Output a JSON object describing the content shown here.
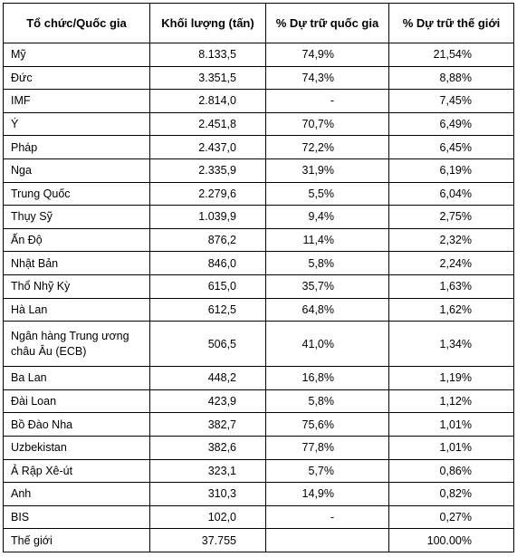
{
  "headers": [
    "Tổ chức/Quốc gia",
    "Khối lượng (tấn)",
    "% Dự trữ quốc gia",
    "% Dự trữ thế giới"
  ],
  "rows": [
    {
      "name": "Mỹ",
      "volume": "8.133,5",
      "pct_country": "74,9%",
      "pct_world": "21,54%"
    },
    {
      "name": "Đức",
      "volume": "3.351,5",
      "pct_country": "74,3%",
      "pct_world": "8,88%"
    },
    {
      "name": "IMF",
      "volume": "2.814,0",
      "pct_country": "-",
      "pct_world": "7,45%"
    },
    {
      "name": "Ý",
      "volume": "2.451,8",
      "pct_country": "70,7%",
      "pct_world": "6,49%"
    },
    {
      "name": "Pháp",
      "volume": "2.437,0",
      "pct_country": "72,2%",
      "pct_world": "6,45%"
    },
    {
      "name": "Nga",
      "volume": "2.335,9",
      "pct_country": "31,9%",
      "pct_world": "6,19%"
    },
    {
      "name": "Trung Quốc",
      "volume": "2.279,6",
      "pct_country": "5,5%",
      "pct_world": "6,04%"
    },
    {
      "name": "Thụy Sỹ",
      "volume": "1.039,9",
      "pct_country": "9,4%",
      "pct_world": "2,75%"
    },
    {
      "name": "Ấn Độ",
      "volume": "876,2",
      "pct_country": "11,4%",
      "pct_world": "2,32%"
    },
    {
      "name": "Nhật Bản",
      "volume": "846,0",
      "pct_country": "5,8%",
      "pct_world": "2,24%"
    },
    {
      "name": "Thổ Nhỹ Kỳ",
      "volume": "615,0",
      "pct_country": "35,7%",
      "pct_world": "1,63%"
    },
    {
      "name": "Hà Lan",
      "volume": "612,5",
      "pct_country": "64,8%",
      "pct_world": "1,62%"
    },
    {
      "name": "Ngân hàng Trung ương châu Âu (ECB)",
      "volume": "506,5",
      "pct_country": "41,0%",
      "pct_world": "1,34%"
    },
    {
      "name": "Ba Lan",
      "volume": "448,2",
      "pct_country": "16,8%",
      "pct_world": "1,19%"
    },
    {
      "name": "Đài Loan",
      "volume": "423,9",
      "pct_country": "5,8%",
      "pct_world": "1,12%"
    },
    {
      "name": "Bồ Đào Nha",
      "volume": "382,7",
      "pct_country": "75,6%",
      "pct_world": "1,01%"
    },
    {
      "name": "Uzbekistan",
      "volume": "382,6",
      "pct_country": "77,8%",
      "pct_world": "1,01%"
    },
    {
      "name": "Ả Rập Xê-út",
      "volume": "323,1",
      "pct_country": "5,7%",
      "pct_world": "0,86%"
    },
    {
      "name": "Anh",
      "volume": "310,3",
      "pct_country": "14,9%",
      "pct_world": "0,82%"
    },
    {
      "name": "BIS",
      "volume": "102,0",
      "pct_country": "-",
      "pct_world": "0,27%"
    },
    {
      "name": "Thế giới",
      "volume": "37.755",
      "pct_country": "",
      "pct_world": "100.00%"
    }
  ]
}
